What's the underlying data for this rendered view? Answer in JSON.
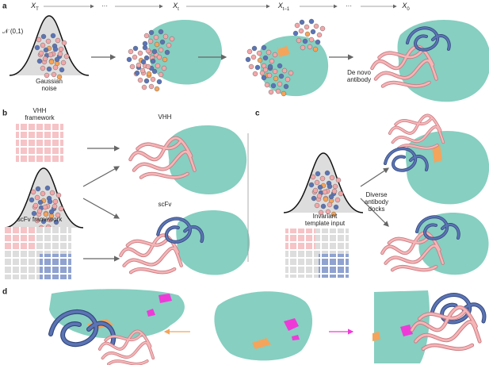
{
  "panel_a": {
    "label": "a",
    "steps": [
      {
        "base": "X",
        "sub": "T"
      },
      {
        "text": "···"
      },
      {
        "base": "X",
        "sub": "t"
      },
      {
        "base": "X",
        "sub": "t−1"
      },
      {
        "text": "···"
      },
      {
        "base": "X",
        "sub": "0"
      }
    ],
    "distribution": "𝒩 (0,1)",
    "start_caption": [
      "Gaussian",
      "noise"
    ],
    "end_caption": [
      "De novo",
      "antibody"
    ]
  },
  "panel_b": {
    "label": "b",
    "vhh_framework": [
      "VHH",
      "framework"
    ],
    "vhh_output": "VHH",
    "scfv_framework": "scFv framework",
    "scfv_output": "scFv"
  },
  "panel_c": {
    "label": "c",
    "template_input": [
      "Invariant",
      "template input"
    ],
    "output": [
      "Diverse",
      "antibody",
      "docks"
    ]
  },
  "panel_d": {
    "label": "d"
  }
}
